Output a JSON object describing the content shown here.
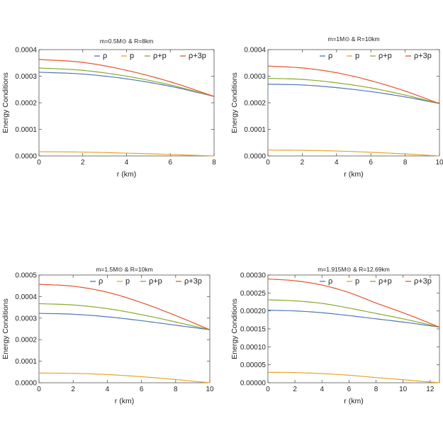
{
  "colors": {
    "rho": "#4f77b8",
    "p": "#e6a627",
    "rho_plus_p": "#8aaa28",
    "rho_plus_3p": "#e5532e"
  },
  "chart_data": [
    {
      "type": "line",
      "title": "m=0.5M⊙ & R=8km",
      "xlabel": "r (km)",
      "ylabel": "Energy Conditions",
      "xlim": [
        0,
        8
      ],
      "ylim": [
        0,
        0.0004
      ],
      "xticks": [
        "0",
        "2",
        "4",
        "6",
        "8"
      ],
      "yticks": [
        "0.0000",
        "0.0001",
        "0.0002",
        "0.0003",
        "0.0004"
      ],
      "legend_position": "top-right",
      "grid": false,
      "series": [
        {
          "name": "ρ",
          "color_key": "rho",
          "x": [
            0,
            2,
            4,
            6,
            8
          ],
          "y": [
            0.000315,
            0.000308,
            0.00029,
            0.000262,
            0.000224
          ]
        },
        {
          "name": "p",
          "color_key": "p",
          "x": [
            0,
            2,
            4,
            6,
            8
          ],
          "y": [
            1.6e-05,
            1.45e-05,
            1.05e-05,
            5.5e-06,
            0.0
          ]
        },
        {
          "name": "ρ+p",
          "color_key": "rho_plus_p",
          "x": [
            0,
            2,
            4,
            6,
            8
          ],
          "y": [
            0.000331,
            0.000322,
            0.0003,
            0.000267,
            0.000224
          ]
        },
        {
          "name": "ρ+3p",
          "color_key": "rho_plus_3p",
          "x": [
            0,
            2,
            4,
            6,
            8
          ],
          "y": [
            0.000363,
            0.000352,
            0.000322,
            0.000279,
            0.000224
          ]
        }
      ]
    },
    {
      "type": "line",
      "title": "m=1M⊙ & R=10km",
      "xlabel": "r (km)",
      "ylabel": "Energy Conditions",
      "xlim": [
        0,
        10
      ],
      "ylim": [
        0,
        0.0004
      ],
      "xticks": [
        "0",
        "2",
        "4",
        "6",
        "8",
        "10"
      ],
      "yticks": [
        "0.0000",
        "0.0001",
        "0.0002",
        "0.0003",
        "0.0004"
      ],
      "legend_position": "top-right",
      "grid": false,
      "series": [
        {
          "name": "ρ",
          "color_key": "rho",
          "x": [
            0,
            2,
            4,
            6,
            8,
            10
          ],
          "y": [
            0.00027,
            0.000267,
            0.000257,
            0.000242,
            0.000222,
            0.000197
          ]
        },
        {
          "name": "p",
          "color_key": "p",
          "x": [
            0,
            2,
            4,
            6,
            8,
            10
          ],
          "y": [
            2.2e-05,
            2.12e-05,
            1.85e-05,
            1.38e-05,
            7.5e-06,
            0.0
          ]
        },
        {
          "name": "ρ+p",
          "color_key": "rho_plus_p",
          "x": [
            0,
            2,
            4,
            6,
            8,
            10
          ],
          "y": [
            0.000292,
            0.000288,
            0.000275,
            0.000256,
            0.000229,
            0.000197
          ]
        },
        {
          "name": "ρ+3p",
          "color_key": "rho_plus_3p",
          "x": [
            0,
            2,
            4,
            6,
            8,
            10
          ],
          "y": [
            0.000338,
            0.000331,
            0.000313,
            0.000283,
            0.000244,
            0.000197
          ]
        }
      ]
    },
    {
      "type": "line",
      "title": "m=1.5M⊙ & R=10km",
      "xlabel": "r (km)",
      "ylabel": "Energy Conditions",
      "xlim": [
        0,
        10
      ],
      "ylim": [
        0,
        0.0005
      ],
      "xticks": [
        "0",
        "2",
        "4",
        "6",
        "8",
        "10"
      ],
      "yticks": [
        "0.0000",
        "0.0001",
        "0.0002",
        "0.0003",
        "0.0004",
        "0.0005"
      ],
      "legend_position": "top-right",
      "grid": false,
      "series": [
        {
          "name": "ρ",
          "color_key": "rho",
          "x": [
            0,
            2,
            4,
            6,
            8,
            10
          ],
          "y": [
            0.000322,
            0.000318,
            0.000306,
            0.000288,
            0.000267,
            0.000246
          ]
        },
        {
          "name": "p",
          "color_key": "p",
          "x": [
            0,
            2,
            4,
            6,
            8,
            10
          ],
          "y": [
            4.5e-05,
            4.35e-05,
            3.8e-05,
            2.8e-05,
            1.5e-05,
            0.0
          ]
        },
        {
          "name": "ρ+p",
          "color_key": "rho_plus_p",
          "x": [
            0,
            2,
            4,
            6,
            8,
            10
          ],
          "y": [
            0.000367,
            0.000361,
            0.000344,
            0.000316,
            0.000282,
            0.000246
          ]
        },
        {
          "name": "ρ+3p",
          "color_key": "rho_plus_3p",
          "x": [
            0,
            2,
            4,
            6,
            8,
            10
          ],
          "y": [
            0.000457,
            0.000448,
            0.00042,
            0.000372,
            0.000312,
            0.000246
          ]
        }
      ]
    },
    {
      "type": "line",
      "title": "m=1.915M⊙ & R=12.69km",
      "xlabel": "r (km)",
      "ylabel": "Energy Conditions",
      "xlim": [
        0,
        12.69
      ],
      "ylim": [
        0,
        0.0003
      ],
      "xticks": [
        "0",
        "2",
        "4",
        "6",
        "8",
        "10",
        "12"
      ],
      "yticks": [
        "0.00000",
        "0.00005",
        "0.00010",
        "0.00015",
        "0.00020",
        "0.00025",
        "0.00030"
      ],
      "legend_position": "top-right",
      "grid": false,
      "series": [
        {
          "name": "ρ",
          "color_key": "rho",
          "x": [
            0,
            2,
            4,
            6,
            8,
            10,
            12.69
          ],
          "y": [
            0.000202,
            0.0002,
            0.000195,
            0.000187,
            0.000178,
            0.000169,
            0.000155
          ]
        },
        {
          "name": "p",
          "color_key": "p",
          "x": [
            0,
            2,
            4,
            6,
            8,
            10,
            12.69
          ],
          "y": [
            2.9e-05,
            2.83e-05,
            2.55e-05,
            2.1e-05,
            1.45e-05,
            8.5e-06,
            0.0
          ]
        },
        {
          "name": "ρ+p",
          "color_key": "rho_plus_p",
          "x": [
            0,
            2,
            4,
            6,
            8,
            10,
            12.69
          ],
          "y": [
            0.000231,
            0.000228,
            0.000221,
            0.000208,
            0.000193,
            0.000178,
            0.000155
          ]
        },
        {
          "name": "ρ+3p",
          "color_key": "rho_plus_3p",
          "x": [
            0,
            2,
            4,
            6,
            8,
            10,
            12.69
          ],
          "y": [
            0.000289,
            0.000284,
            0.000272,
            0.000251,
            0.000222,
            0.000195,
            0.000155
          ]
        }
      ]
    }
  ]
}
